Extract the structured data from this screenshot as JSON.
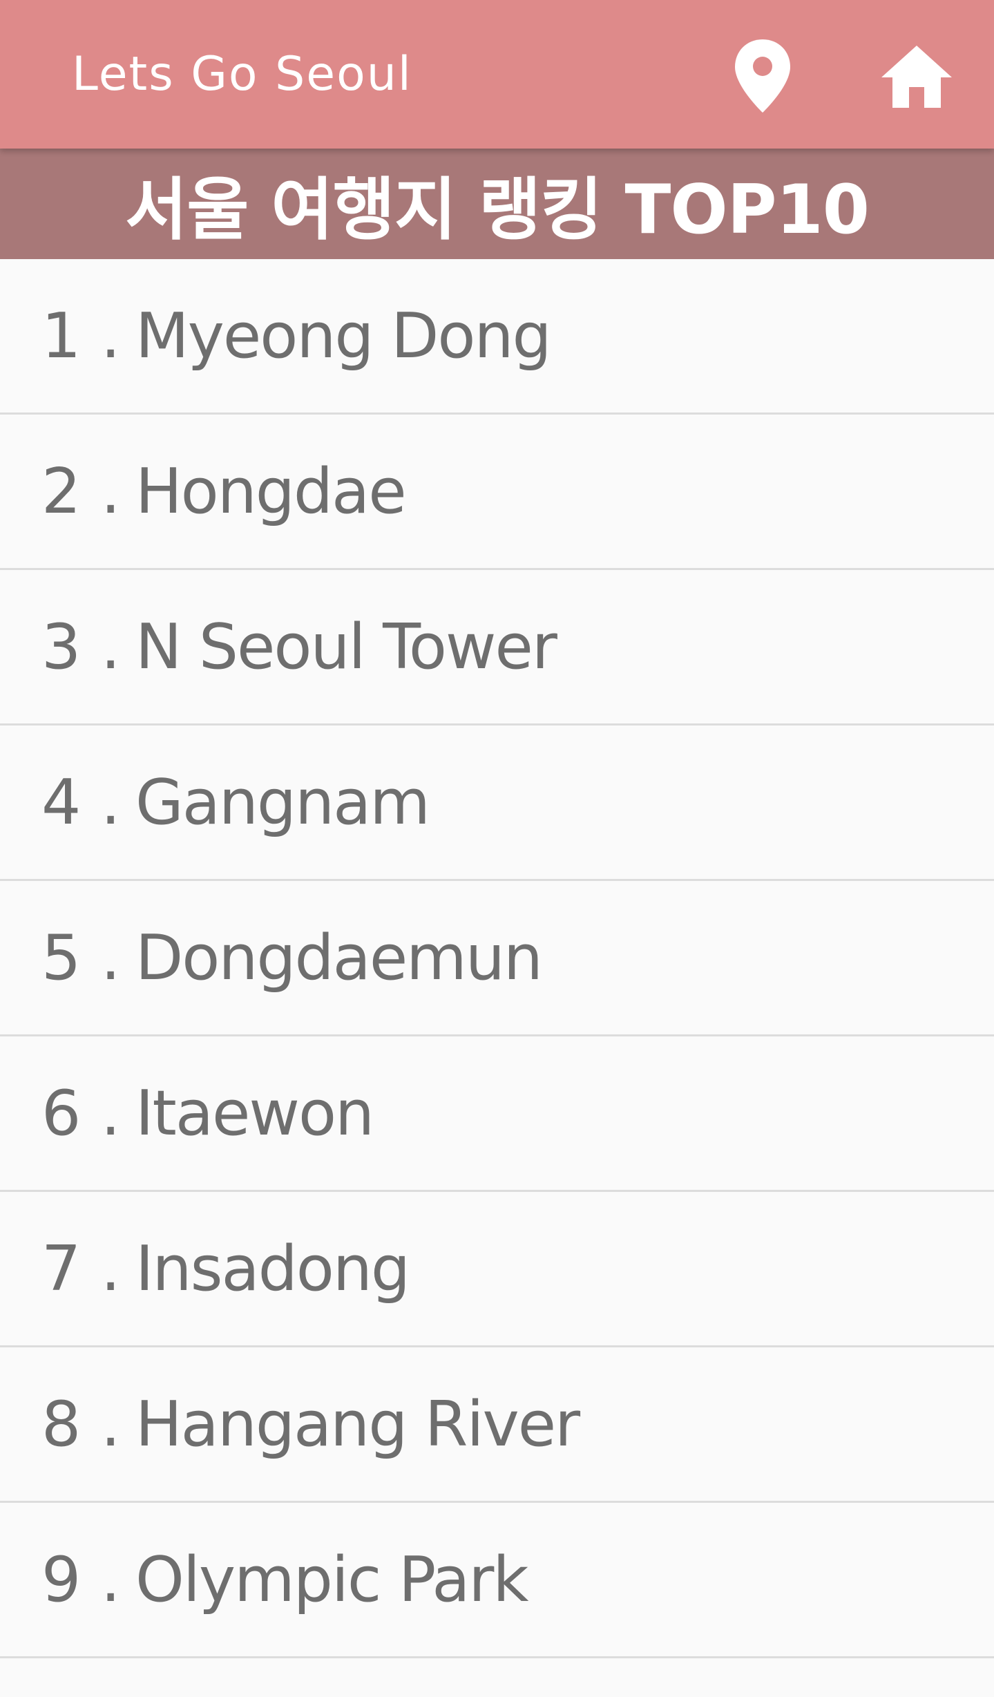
{
  "app_bar": {
    "title": "Lets Go Seoul",
    "color": "#de8a8a",
    "icons": [
      "location-pin-icon",
      "home-icon"
    ]
  },
  "banner": {
    "title": "서울 여행지 랭킹 TOP10",
    "color": "#a87878"
  },
  "list": {
    "items": [
      {
        "rank": "1 .",
        "name": "Myeong Dong"
      },
      {
        "rank": "2 .",
        "name": "Hongdae"
      },
      {
        "rank": "3 .",
        "name": "N Seoul Tower"
      },
      {
        "rank": "4 .",
        "name": "Gangnam"
      },
      {
        "rank": "5 .",
        "name": "Dongdaemun"
      },
      {
        "rank": "6 .",
        "name": "Itaewon"
      },
      {
        "rank": "7 .",
        "name": "Insadong"
      },
      {
        "rank": "8 .",
        "name": "Hangang River"
      },
      {
        "rank": "9 .",
        "name": "Olympic Park"
      }
    ]
  }
}
